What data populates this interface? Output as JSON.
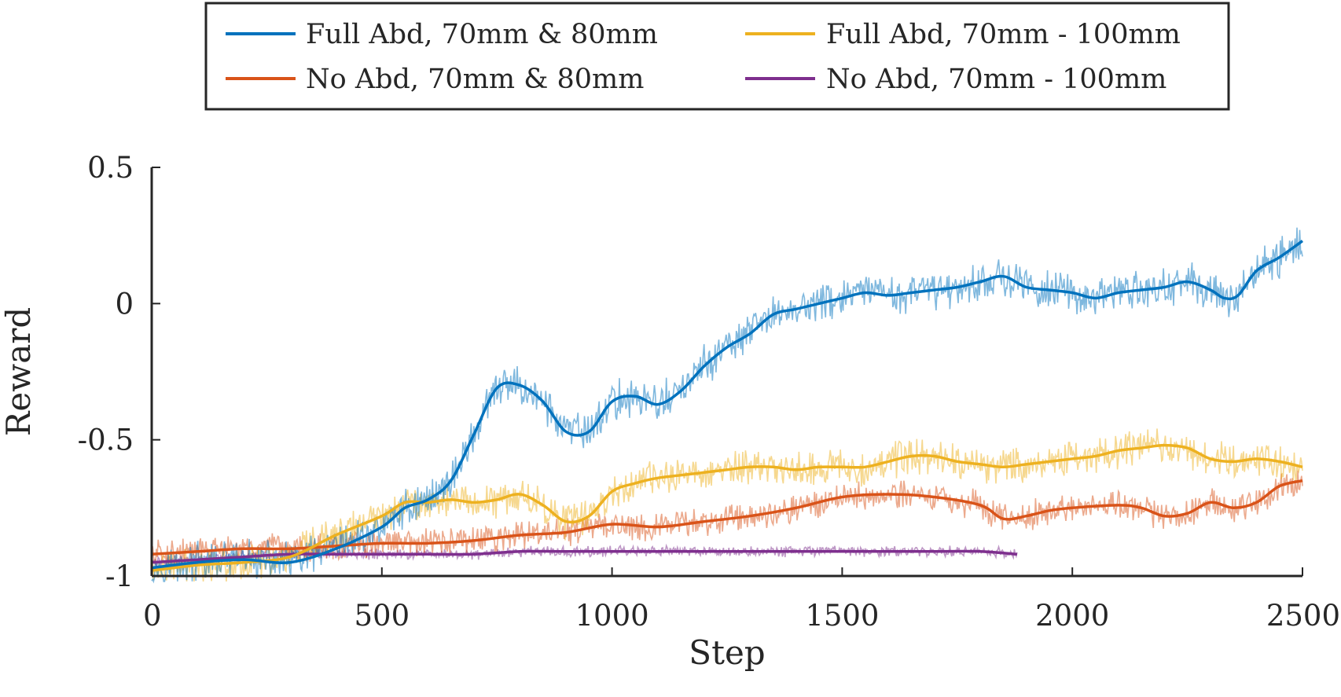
{
  "chart_data": {
    "type": "line",
    "title": "",
    "xlabel": "Step",
    "ylabel": "Reward",
    "xlim": [
      0,
      2500
    ],
    "ylim": [
      -1,
      0.5
    ],
    "xticks": [
      0,
      500,
      1000,
      1500,
      2000,
      2500
    ],
    "xtick_labels": [
      "0",
      "500",
      "1000",
      "1500",
      "2000",
      "2500"
    ],
    "yticks": [
      -1,
      -0.5,
      0,
      0.5
    ],
    "ytick_labels": [
      "-1",
      "-0.5",
      "0",
      "0.5"
    ],
    "grid": false,
    "legend_position": "top-outside",
    "series": [
      {
        "name": "Full Abd, 70mm & 80mm",
        "color": "#0072BD",
        "raw_noise": 0.055,
        "smoothed": [
          [
            0,
            -0.97
          ],
          [
            100,
            -0.95
          ],
          [
            200,
            -0.94
          ],
          [
            300,
            -0.95
          ],
          [
            400,
            -0.9
          ],
          [
            500,
            -0.82
          ],
          [
            550,
            -0.75
          ],
          [
            600,
            -0.72
          ],
          [
            650,
            -0.65
          ],
          [
            700,
            -0.48
          ],
          [
            750,
            -0.31
          ],
          [
            800,
            -0.3
          ],
          [
            850,
            -0.36
          ],
          [
            900,
            -0.47
          ],
          [
            950,
            -0.47
          ],
          [
            1000,
            -0.36
          ],
          [
            1050,
            -0.34
          ],
          [
            1100,
            -0.37
          ],
          [
            1150,
            -0.32
          ],
          [
            1200,
            -0.23
          ],
          [
            1250,
            -0.16
          ],
          [
            1300,
            -0.11
          ],
          [
            1350,
            -0.04
          ],
          [
            1400,
            -0.02
          ],
          [
            1450,
            0.0
          ],
          [
            1500,
            0.02
          ],
          [
            1550,
            0.04
          ],
          [
            1600,
            0.03
          ],
          [
            1650,
            0.04
          ],
          [
            1700,
            0.05
          ],
          [
            1750,
            0.06
          ],
          [
            1800,
            0.08
          ],
          [
            1850,
            0.1
          ],
          [
            1900,
            0.06
          ],
          [
            1950,
            0.05
          ],
          [
            2000,
            0.04
          ],
          [
            2050,
            0.02
          ],
          [
            2100,
            0.04
          ],
          [
            2150,
            0.05
          ],
          [
            2200,
            0.06
          ],
          [
            2250,
            0.08
          ],
          [
            2300,
            0.05
          ],
          [
            2330,
            0.02
          ],
          [
            2360,
            0.03
          ],
          [
            2400,
            0.12
          ],
          [
            2450,
            0.17
          ],
          [
            2500,
            0.23
          ]
        ]
      },
      {
        "name": "Full Abd, 70mm - 100mm",
        "color": "#EDB120",
        "raw_noise": 0.05,
        "smoothed": [
          [
            0,
            -0.98
          ],
          [
            100,
            -0.96
          ],
          [
            200,
            -0.95
          ],
          [
            300,
            -0.93
          ],
          [
            400,
            -0.85
          ],
          [
            500,
            -0.78
          ],
          [
            550,
            -0.73
          ],
          [
            600,
            -0.73
          ],
          [
            650,
            -0.72
          ],
          [
            700,
            -0.73
          ],
          [
            750,
            -0.72
          ],
          [
            800,
            -0.7
          ],
          [
            850,
            -0.74
          ],
          [
            900,
            -0.8
          ],
          [
            950,
            -0.78
          ],
          [
            1000,
            -0.69
          ],
          [
            1050,
            -0.66
          ],
          [
            1100,
            -0.64
          ],
          [
            1150,
            -0.63
          ],
          [
            1200,
            -0.62
          ],
          [
            1250,
            -0.61
          ],
          [
            1300,
            -0.6
          ],
          [
            1350,
            -0.6
          ],
          [
            1400,
            -0.61
          ],
          [
            1450,
            -0.6
          ],
          [
            1500,
            -0.6
          ],
          [
            1550,
            -0.6
          ],
          [
            1600,
            -0.58
          ],
          [
            1650,
            -0.56
          ],
          [
            1700,
            -0.56
          ],
          [
            1750,
            -0.58
          ],
          [
            1800,
            -0.59
          ],
          [
            1850,
            -0.6
          ],
          [
            1900,
            -0.59
          ],
          [
            1950,
            -0.58
          ],
          [
            2000,
            -0.57
          ],
          [
            2050,
            -0.56
          ],
          [
            2100,
            -0.54
          ],
          [
            2150,
            -0.53
          ],
          [
            2200,
            -0.52
          ],
          [
            2250,
            -0.53
          ],
          [
            2300,
            -0.57
          ],
          [
            2350,
            -0.58
          ],
          [
            2400,
            -0.57
          ],
          [
            2450,
            -0.58
          ],
          [
            2500,
            -0.6
          ]
        ]
      },
      {
        "name": "No Abd, 70mm & 80mm",
        "color": "#D95319",
        "raw_noise": 0.04,
        "smoothed": [
          [
            0,
            -0.92
          ],
          [
            100,
            -0.91
          ],
          [
            200,
            -0.9
          ],
          [
            300,
            -0.9
          ],
          [
            400,
            -0.89
          ],
          [
            500,
            -0.88
          ],
          [
            600,
            -0.88
          ],
          [
            700,
            -0.87
          ],
          [
            800,
            -0.85
          ],
          [
            900,
            -0.84
          ],
          [
            1000,
            -0.81
          ],
          [
            1100,
            -0.82
          ],
          [
            1200,
            -0.8
          ],
          [
            1300,
            -0.78
          ],
          [
            1400,
            -0.75
          ],
          [
            1500,
            -0.71
          ],
          [
            1600,
            -0.7
          ],
          [
            1700,
            -0.71
          ],
          [
            1800,
            -0.74
          ],
          [
            1850,
            -0.79
          ],
          [
            1900,
            -0.78
          ],
          [
            1950,
            -0.76
          ],
          [
            2000,
            -0.75
          ],
          [
            2100,
            -0.74
          ],
          [
            2150,
            -0.75
          ],
          [
            2200,
            -0.78
          ],
          [
            2250,
            -0.77
          ],
          [
            2300,
            -0.73
          ],
          [
            2350,
            -0.75
          ],
          [
            2400,
            -0.73
          ],
          [
            2450,
            -0.67
          ],
          [
            2500,
            -0.65
          ]
        ]
      },
      {
        "name": "No Abd, 70mm - 100mm",
        "color": "#7E2F8E",
        "raw_noise": 0.015,
        "smoothed": [
          [
            0,
            -0.95
          ],
          [
            100,
            -0.94
          ],
          [
            200,
            -0.93
          ],
          [
            300,
            -0.92
          ],
          [
            400,
            -0.92
          ],
          [
            500,
            -0.92
          ],
          [
            600,
            -0.92
          ],
          [
            700,
            -0.92
          ],
          [
            800,
            -0.91
          ],
          [
            900,
            -0.91
          ],
          [
            1000,
            -0.91
          ],
          [
            1100,
            -0.91
          ],
          [
            1200,
            -0.91
          ],
          [
            1300,
            -0.91
          ],
          [
            1400,
            -0.91
          ],
          [
            1500,
            -0.91
          ],
          [
            1600,
            -0.91
          ],
          [
            1700,
            -0.91
          ],
          [
            1800,
            -0.91
          ],
          [
            1880,
            -0.92
          ]
        ]
      }
    ]
  }
}
